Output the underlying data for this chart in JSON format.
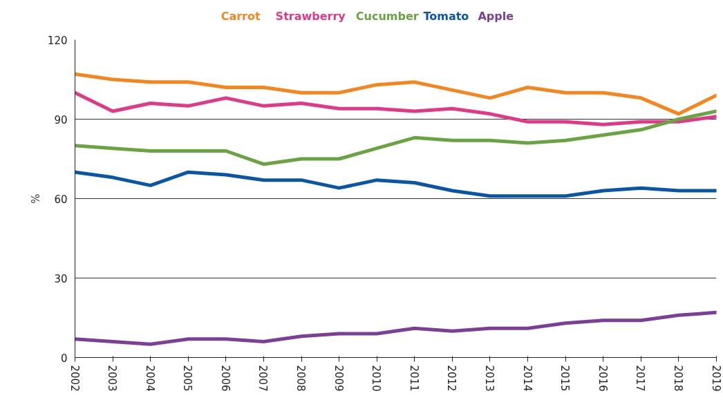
{
  "chart_data": {
    "type": "line",
    "ylabel": "%",
    "x": [
      2002,
      2003,
      2004,
      2005,
      2006,
      2007,
      2008,
      2009,
      2010,
      2011,
      2012,
      2013,
      2014,
      2015,
      2016,
      2017,
      2018,
      2019
    ],
    "xlim": [
      2002,
      2019
    ],
    "xticks": [
      2002,
      2003,
      2004,
      2005,
      2006,
      2007,
      2008,
      2009,
      2010,
      2011,
      2012,
      2013,
      2014,
      2015,
      2016,
      2017,
      2018,
      2019
    ],
    "ylim": [
      0,
      120
    ],
    "yticks": [
      0,
      30,
      60,
      90,
      120
    ],
    "grid": "y",
    "line_style": "solid",
    "series": [
      {
        "name": "Carrot",
        "color": "#f5861f",
        "values": [
          107,
          105,
          104,
          104,
          102,
          102,
          100,
          100,
          103,
          104,
          101,
          98,
          102,
          100,
          100,
          98,
          92,
          99
        ]
      },
      {
        "name": "Strawberry",
        "color": "#e0398a",
        "values": [
          100,
          93,
          96,
          95,
          98,
          95,
          96,
          94,
          94,
          93,
          94,
          92,
          89,
          89,
          88,
          89,
          89,
          91
        ]
      },
      {
        "name": "Cucumber",
        "color": "#6aa341",
        "values": [
          80,
          79,
          78,
          78,
          78,
          73,
          75,
          75,
          79,
          83,
          82,
          82,
          81,
          82,
          84,
          86,
          90,
          93
        ]
      },
      {
        "name": "Tomato",
        "color": "#0a56a6",
        "values": [
          70,
          68,
          65,
          70,
          69,
          67,
          67,
          64,
          67,
          66,
          63,
          61,
          61,
          61,
          63,
          64,
          63,
          63
        ]
      },
      {
        "name": "Apple",
        "color": "#7b3f9a",
        "values": [
          7,
          6,
          5,
          7,
          7,
          6,
          8,
          9,
          9,
          11,
          10,
          11,
          11,
          13,
          14,
          14,
          16,
          17
        ]
      }
    ]
  }
}
